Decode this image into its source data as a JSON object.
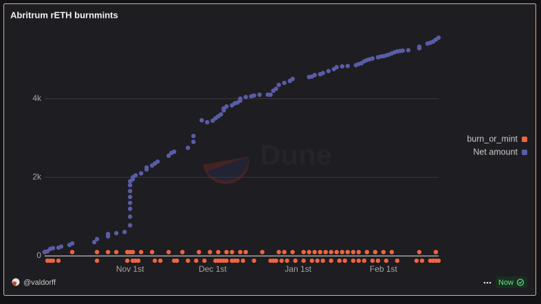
{
  "chart_data": {
    "type": "scatter",
    "title": "Abritrum rETH burnmints",
    "watermark": "Dune",
    "xlim": [
      "Oct 1",
      "Feb 21"
    ],
    "xticks": [
      {
        "value": "Nov 1",
        "label": "Nov 1st"
      },
      {
        "value": "Dec 1",
        "label": "Dec 1st"
      },
      {
        "value": "Jan 1",
        "label": "Jan 1st"
      },
      {
        "value": "Feb 1",
        "label": "Feb 1st"
      }
    ],
    "ylim": [
      -200,
      5600
    ],
    "yticks": [
      0,
      {
        "value": 2000,
        "label": "2k"
      },
      {
        "value": 4000,
        "label": "4k"
      }
    ],
    "grid": true,
    "legend": "right",
    "series": [
      {
        "name": "burn_or_mint",
        "color": "#f0653f",
        "x": [
          "Oct 1",
          "Oct 11",
          "Oct 20",
          "Oct 24",
          "Oct 27",
          "Oct 31",
          "Nov 1",
          "Nov 2",
          "Nov 5",
          "Nov 9",
          "Nov 15",
          "Nov 20",
          "Nov 26",
          "Nov 30",
          "Dec 3",
          "Dec 6",
          "Dec 8",
          "Dec 11",
          "Dec 13",
          "Dec 19",
          "Dec 25",
          "Dec 27",
          "Dec 30",
          "Jan 3",
          "Jan 5",
          "Jan 7",
          "Jan 9",
          "Jan 11",
          "Jan 13",
          "Jan 15",
          "Jan 17",
          "Jan 19",
          "Jan 21",
          "Jan 23",
          "Jan 26",
          "Jan 29",
          "Feb 1",
          "Feb 4",
          "Feb 14",
          "Feb 20",
          "Oct 2",
          "Oct 3",
          "Oct 4",
          "Oct 6",
          "Oct 20",
          "Oct 31",
          "Nov 2",
          "Nov 3",
          "Nov 4",
          "Nov 10",
          "Nov 12",
          "Nov 17",
          "Nov 18",
          "Nov 22",
          "Nov 25",
          "Nov 28",
          "Dec 2",
          "Dec 3",
          "Dec 4",
          "Dec 5",
          "Dec 6",
          "Dec 8",
          "Dec 9",
          "Dec 10",
          "Dec 12",
          "Dec 16",
          "Dec 22",
          "Dec 23",
          "Dec 24",
          "Dec 26",
          "Dec 28",
          "Dec 31",
          "Jan 3",
          "Jan 6",
          "Jan 8",
          "Jan 10",
          "Jan 13",
          "Jan 16",
          "Jan 18",
          "Jan 21",
          "Jan 23",
          "Jan 25",
          "Jan 28",
          "Jan 30",
          "Feb 2",
          "Feb 6",
          "Feb 13",
          "Feb 15",
          "Feb 18",
          "Feb 19",
          "Feb 20",
          "Feb 21"
        ],
        "values": [
          100,
          100,
          100,
          100,
          100,
          100,
          100,
          100,
          100,
          100,
          100,
          100,
          100,
          100,
          100,
          100,
          100,
          100,
          100,
          100,
          100,
          100,
          100,
          100,
          100,
          100,
          100,
          100,
          100,
          100,
          100,
          100,
          100,
          100,
          100,
          100,
          100,
          100,
          100,
          100,
          -120,
          -120,
          -120,
          -120,
          -120,
          -120,
          -120,
          -120,
          -120,
          -120,
          -120,
          -120,
          -120,
          -120,
          -120,
          -120,
          -120,
          -120,
          -120,
          -120,
          -120,
          -120,
          -120,
          -120,
          -120,
          -120,
          -120,
          -120,
          -120,
          -120,
          -120,
          -120,
          -120,
          -120,
          -120,
          -120,
          -120,
          -120,
          -120,
          -120,
          -120,
          -120,
          -120,
          -120,
          -120,
          -120,
          -120,
          -120,
          -120,
          -120,
          -120,
          -120
        ]
      },
      {
        "name": "Net amount",
        "color": "#5b5ca8",
        "x": [
          "Oct 1",
          "Oct 2",
          "Oct 3",
          "Oct 4",
          "Oct 6",
          "Oct 7",
          "Oct 10",
          "Oct 11",
          "Oct 19",
          "Oct 20",
          "Oct 24",
          "Oct 24",
          "Oct 27",
          "Oct 30",
          "Nov 1",
          "Nov 1",
          "Nov 1",
          "Nov 1",
          "Nov 1",
          "Nov 1",
          "Nov 1",
          "Nov 1",
          "Nov 2",
          "Nov 2",
          "Nov 3",
          "Nov 5",
          "Nov 7",
          "Nov 7",
          "Nov 9",
          "Nov 10",
          "Nov 11",
          "Nov 15",
          "Nov 16",
          "Nov 17",
          "Nov 22",
          "Nov 24",
          "Nov 24",
          "Nov 27",
          "Nov 29",
          "Dec 1",
          "Dec 2",
          "Dec 3",
          "Dec 4",
          "Dec 5",
          "Dec 5",
          "Dec 6",
          "Dec 8",
          "Dec 9",
          "Dec 10",
          "Dec 11",
          "Dec 11",
          "Dec 13",
          "Dec 15",
          "Dec 16",
          "Dec 18",
          "Dec 21",
          "Dec 22",
          "Dec 23",
          "Dec 24",
          "Dec 25",
          "Dec 27",
          "Dec 29",
          "Dec 30",
          "Jan 5",
          "Jan 6",
          "Jan 7",
          "Jan 9",
          "Jan 10",
          "Jan 12",
          "Jan 14",
          "Jan 15",
          "Jan 17",
          "Jan 19",
          "Jan 22",
          "Jan 23",
          "Jan 24",
          "Jan 25",
          "Jan 26",
          "Jan 27",
          "Jan 28",
          "Jan 30",
          "Jan 31",
          "Feb 1",
          "Feb 2",
          "Feb 3",
          "Feb 4",
          "Feb 5",
          "Feb 6",
          "Feb 7",
          "Feb 8",
          "Feb 10",
          "Feb 14",
          "Feb 14",
          "Feb 17",
          "Feb 18",
          "Feb 19",
          "Feb 20",
          "Feb 21"
        ],
        "values": [
          100,
          120,
          180,
          200,
          210,
          240,
          280,
          320,
          350,
          430,
          500,
          560,
          580,
          610,
          780,
          1000,
          1200,
          1350,
          1500,
          1650,
          1800,
          1900,
          1950,
          2000,
          2050,
          2100,
          2200,
          2250,
          2300,
          2350,
          2400,
          2550,
          2620,
          2650,
          2750,
          2900,
          3050,
          3450,
          3400,
          3440,
          3500,
          3550,
          3600,
          3700,
          3750,
          3800,
          3830,
          3880,
          3900,
          3950,
          4000,
          4040,
          4060,
          4080,
          4100,
          4100,
          4100,
          4200,
          4250,
          4350,
          4400,
          4450,
          4500,
          4550,
          4560,
          4600,
          4620,
          4650,
          4700,
          4750,
          4800,
          4820,
          4830,
          4850,
          4880,
          4900,
          4950,
          4980,
          5000,
          5020,
          5050,
          5070,
          5080,
          5100,
          5120,
          5150,
          5180,
          5200,
          5210,
          5220,
          5230,
          5280,
          5320,
          5400,
          5420,
          5450,
          5500,
          5550
        ]
      }
    ]
  },
  "footer": {
    "author": "@valdorff",
    "status": "Now"
  }
}
